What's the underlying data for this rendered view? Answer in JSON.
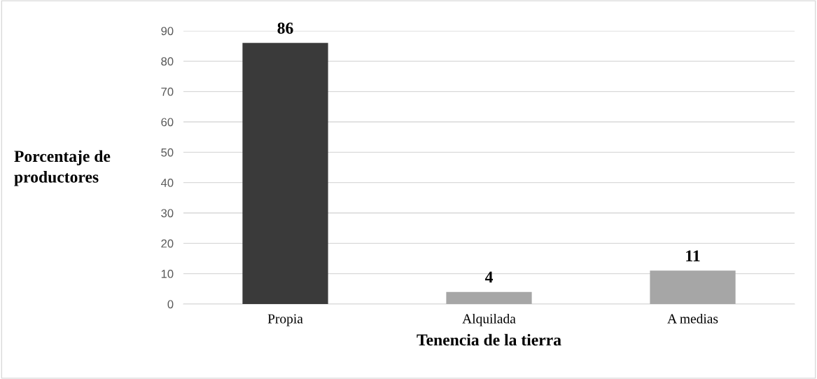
{
  "chart_data": {
    "type": "bar",
    "categories": [
      "Propia",
      "Alquilada",
      "A medias"
    ],
    "values": [
      86,
      4,
      11
    ],
    "colors": [
      "#3a3a3a",
      "#a6a6a6",
      "#a6a6a6"
    ],
    "xlabel": "Tenencia de la tierra",
    "ylabel": "Porcentaje de\nproductores",
    "ylim": [
      0,
      90
    ],
    "yticks": [
      0,
      10,
      20,
      30,
      40,
      50,
      60,
      70,
      80,
      90
    ],
    "grid": "y",
    "data_labels": true
  }
}
